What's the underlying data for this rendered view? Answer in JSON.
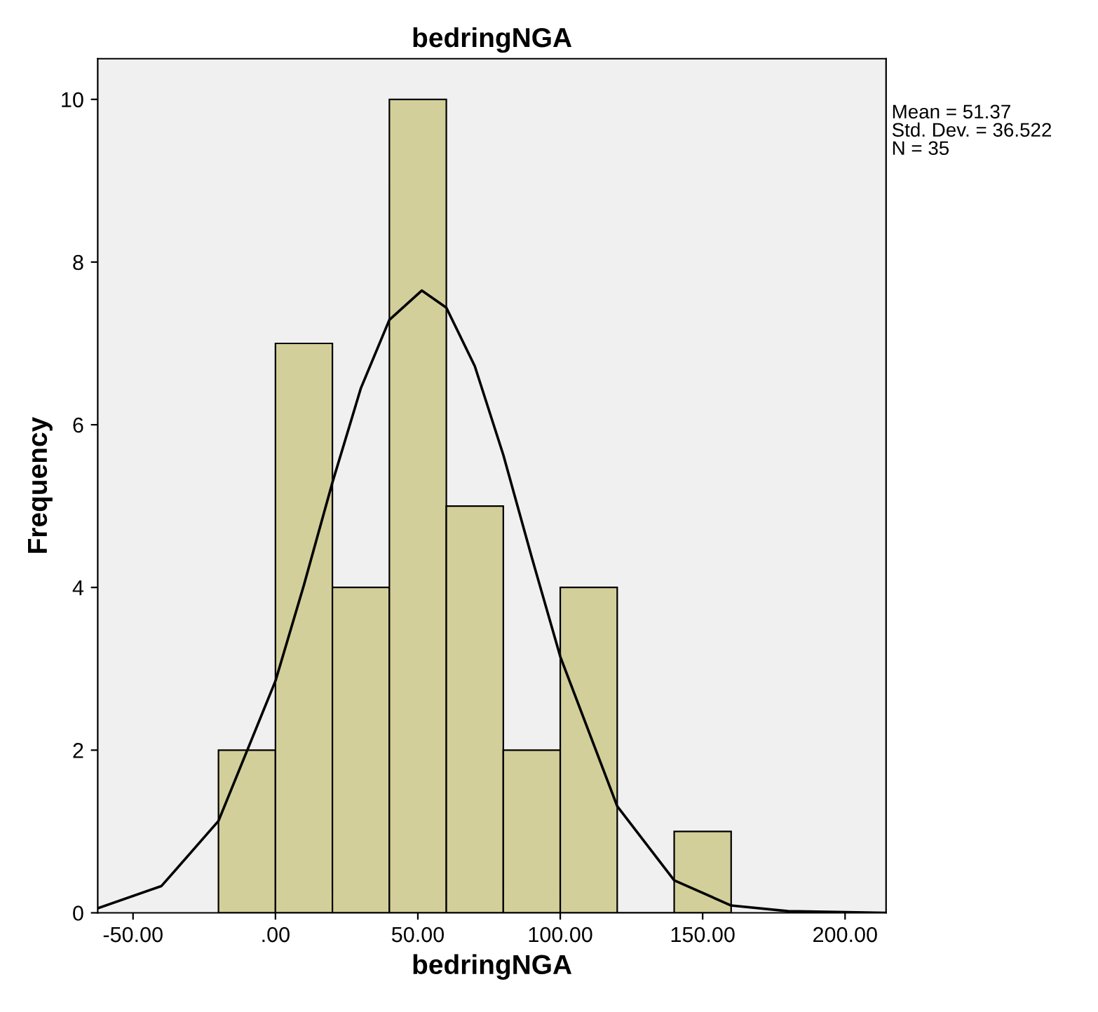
{
  "chart_data": {
    "type": "histogram",
    "title": "bedringNGA",
    "xlabel": "bedringNGA",
    "ylabel": "Frequency",
    "bins": [
      -20,
      0,
      20,
      40,
      60,
      80,
      100,
      120,
      140,
      160
    ],
    "values": [
      2,
      7,
      4,
      10,
      5,
      2,
      4,
      0,
      1
    ],
    "color": "#d3cf9a",
    "series": [
      {
        "type": "line",
        "color": "#000000",
        "x": [
          -62,
          -40,
          -20,
          0,
          10,
          20,
          30,
          40,
          51.37,
          60,
          70,
          80,
          90,
          100,
          120,
          140,
          160,
          180,
          214
        ],
        "values": [
          0.06,
          0.33,
          1.13,
          2.85,
          4.03,
          5.29,
          6.45,
          7.29,
          7.65,
          7.44,
          6.72,
          5.63,
          4.37,
          3.15,
          1.31,
          0.4,
          0.09,
          0.02,
          0.0
        ]
      }
    ],
    "xlim": [
      -62.4,
      214.4
    ],
    "ylim": [
      0,
      10.5
    ],
    "xticks": [
      {
        "value": -50,
        "label": "-50.00"
      },
      {
        "value": 0,
        "label": ".00"
      },
      {
        "value": 50,
        "label": "50.00"
      },
      {
        "value": 100,
        "label": "100.00"
      },
      {
        "value": 150,
        "label": "150.00"
      },
      {
        "value": 200,
        "label": "200.00"
      }
    ],
    "yticks": [
      0,
      2,
      4,
      6,
      8,
      10
    ],
    "annotations": [
      "Mean = 51.37",
      "Std. Dev. = 36.522",
      "N = 35"
    ],
    "grid": false,
    "legend": false
  }
}
